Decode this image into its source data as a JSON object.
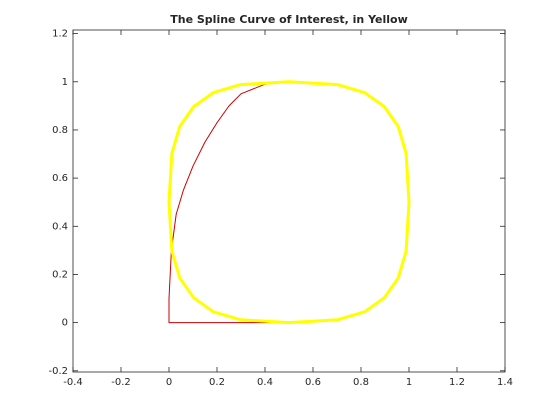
{
  "chart_data": {
    "type": "line",
    "title": "The Spline Curve of Interest, in Yellow",
    "series": [
      {
        "color": "#cc0000",
        "x": [
          0.45,
          0,
          0,
          0.01,
          0.03,
          0.06,
          0.1,
          0.15,
          0.2,
          0.25,
          0.3,
          0.4,
          0.5
        ],
        "values": [
          0,
          0,
          0.1,
          0.3,
          0.45,
          0.55,
          0.65,
          0.75,
          0.83,
          0.9,
          0.95,
          0.99,
          1
        ]
      },
      {
        "color": "#ffff00",
        "x": [
          1,
          0.988,
          0.955,
          0.897,
          0.815,
          0.703,
          0.5,
          0.297,
          0.185,
          0.103,
          0.045,
          0.012,
          0,
          0.012,
          0.045,
          0.103,
          0.185,
          0.297,
          0.5,
          0.703,
          0.815,
          0.897,
          0.955,
          0.988,
          1
        ],
        "values": [
          0.5,
          0.703,
          0.815,
          0.897,
          0.955,
          0.988,
          1,
          0.988,
          0.955,
          0.897,
          0.815,
          0.703,
          0.5,
          0.297,
          0.185,
          0.103,
          0.045,
          0.012,
          0,
          0.012,
          0.045,
          0.103,
          0.185,
          0.297,
          0.5
        ]
      }
    ],
    "xlim": [
      -0.4,
      1.4
    ],
    "xticks": [
      -0.4,
      -0.2,
      0,
      0.2,
      0.4,
      0.6,
      0.8,
      1,
      1.2,
      1.4
    ],
    "ylim": [
      -0.205,
      1.215
    ],
    "yticks": [
      -0.2,
      0,
      0.2,
      0.4,
      0.6,
      0.8,
      1,
      1.2
    ]
  }
}
